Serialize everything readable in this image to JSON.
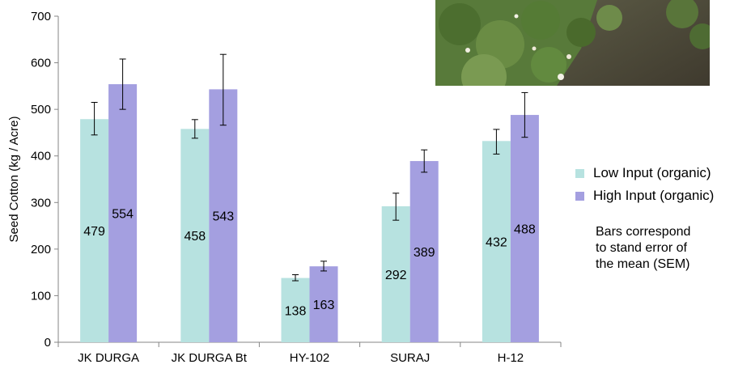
{
  "chart_data": {
    "type": "bar",
    "title": "",
    "xlabel": "",
    "ylabel": "Seed Cotton (kg / Acre)",
    "ylim": [
      0,
      700
    ],
    "yticks": [
      "0",
      "100",
      "200",
      "300",
      "400",
      "500",
      "600",
      "700"
    ],
    "categories": [
      "JK DURGA",
      "JK DURGA Bt",
      "HY-102",
      "SURAJ",
      "H-12"
    ],
    "series": [
      {
        "name": "Low Input (organic)",
        "color": "#b7e2e0",
        "values": [
          479,
          458,
          138,
          292,
          432
        ],
        "labels": [
          "479",
          "458",
          "138",
          "292",
          "432"
        ],
        "error_low": [
          445,
          438,
          132,
          262,
          404
        ],
        "error_high": [
          515,
          478,
          145,
          320,
          457
        ]
      },
      {
        "name": "High Input (organic)",
        "color": "#a49fe0",
        "values": [
          554,
          543,
          163,
          389,
          488
        ],
        "labels": [
          "554",
          "543",
          "163",
          "389",
          "488"
        ],
        "error_low": [
          500,
          466,
          153,
          365,
          440
        ],
        "error_high": [
          608,
          618,
          174,
          413,
          536
        ]
      }
    ],
    "legend_position": "right",
    "grid": false
  },
  "note": {
    "lines": [
      "Bars correspond",
      "to stand error of",
      "the mean (SEM)"
    ]
  }
}
